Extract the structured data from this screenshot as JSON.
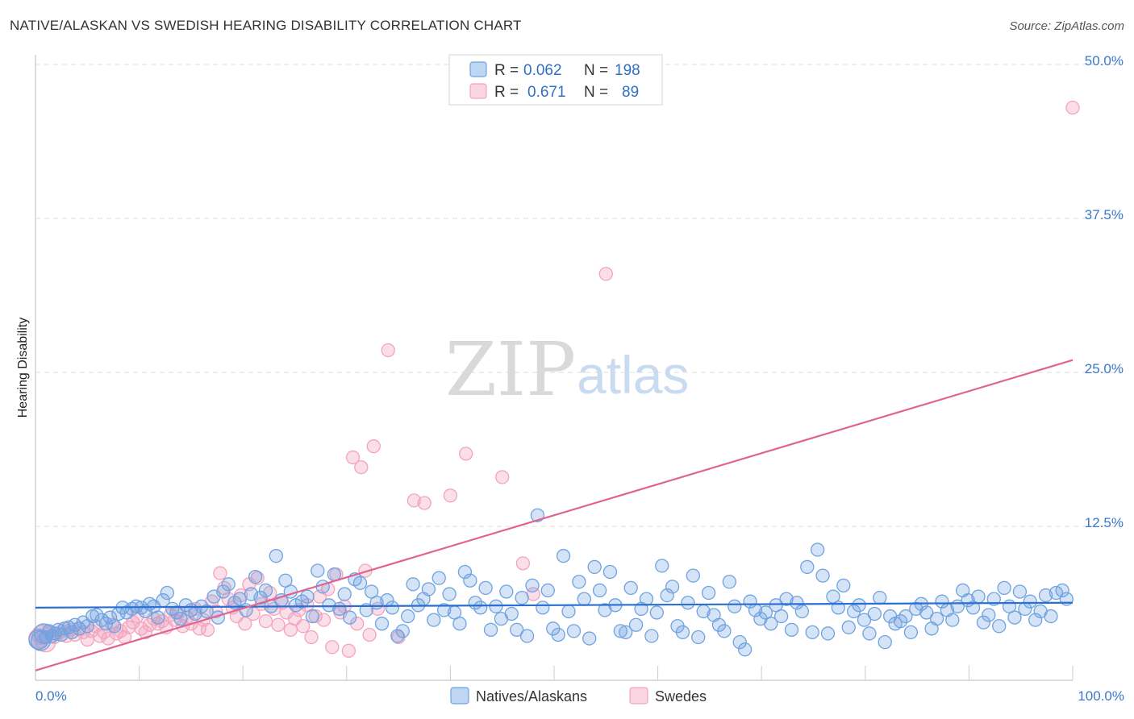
{
  "chart_data": {
    "type": "scatter",
    "title": "NATIVE/ALASKAN VS SWEDISH HEARING DISABILITY CORRELATION CHART",
    "source": "Source: ZipAtlas.com",
    "ylabel": "Hearing Disability",
    "xlabel": "",
    "x_ticks": [
      "0.0%",
      "100.0%"
    ],
    "y_ticks": [
      {
        "value": 12.5,
        "label": "12.5%"
      },
      {
        "value": 25.0,
        "label": "25.0%"
      },
      {
        "value": 37.5,
        "label": "37.5%"
      },
      {
        "value": 50.0,
        "label": "50.0%"
      }
    ],
    "xlim": [
      0,
      100
    ],
    "ylim": [
      0,
      50
    ],
    "watermark": {
      "part1": "ZIP",
      "part2": "atlas"
    },
    "legend": {
      "rows": [
        {
          "r_label": "R =",
          "r_value": "0.062",
          "n_label": "N =",
          "n_value": "198"
        },
        {
          "r_label": "R =",
          "r_value": "0.671",
          "n_label": "N =",
          "n_value": "89"
        }
      ]
    },
    "series": [
      {
        "name": "Natives/Alaskans",
        "color": "#6fa3e0",
        "line_color": "#2a6fd1",
        "trend": {
          "x": [
            0,
            100
          ],
          "y": [
            5.9,
            6.3
          ]
        },
        "points": [
          [
            0.3,
            3.3
          ],
          [
            0.5,
            3.2
          ],
          [
            0.8,
            3.8
          ],
          [
            1.0,
            3.5
          ],
          [
            1.3,
            4.0
          ],
          [
            1.6,
            3.6
          ],
          [
            1.9,
            3.8
          ],
          [
            2.2,
            4.1
          ],
          [
            2.5,
            3.7
          ],
          [
            2.8,
            4.2
          ],
          [
            3.2,
            4.3
          ],
          [
            3.5,
            3.9
          ],
          [
            3.8,
            4.5
          ],
          [
            4.2,
            4.2
          ],
          [
            4.6,
            4.7
          ],
          [
            5.0,
            4.4
          ],
          [
            5.5,
            5.2
          ],
          [
            5.9,
            5.3
          ],
          [
            6.4,
            4.9
          ],
          [
            6.8,
            4.6
          ],
          [
            7.2,
            5.1
          ],
          [
            7.6,
            4.4
          ],
          [
            8.0,
            5.4
          ],
          [
            8.4,
            5.9
          ],
          [
            8.8,
            5.5
          ],
          [
            9.3,
            5.8
          ],
          [
            9.7,
            6.0
          ],
          [
            10.2,
            5.9
          ],
          [
            10.6,
            5.6
          ],
          [
            11.0,
            6.2
          ],
          [
            11.4,
            6.0
          ],
          [
            11.8,
            5.1
          ],
          [
            12.3,
            6.5
          ],
          [
            12.7,
            7.1
          ],
          [
            13.2,
            5.8
          ],
          [
            13.6,
            5.5
          ],
          [
            14.0,
            5.0
          ],
          [
            14.5,
            6.1
          ],
          [
            15.0,
            5.7
          ],
          [
            15.4,
            5.4
          ],
          [
            16.0,
            6.0
          ],
          [
            16.5,
            5.6
          ],
          [
            17.2,
            6.8
          ],
          [
            17.6,
            5.1
          ],
          [
            18.1,
            7.2
          ],
          [
            18.6,
            7.8
          ],
          [
            19.2,
            6.3
          ],
          [
            19.7,
            6.6
          ],
          [
            20.3,
            5.7
          ],
          [
            20.8,
            7.0
          ],
          [
            21.2,
            8.4
          ],
          [
            21.7,
            6.7
          ],
          [
            22.2,
            7.3
          ],
          [
            22.7,
            6.0
          ],
          [
            23.2,
            10.1
          ],
          [
            23.7,
            6.5
          ],
          [
            24.1,
            8.1
          ],
          [
            24.6,
            7.2
          ],
          [
            25.1,
            6.1
          ],
          [
            25.7,
            6.4
          ],
          [
            26.2,
            6.8
          ],
          [
            26.7,
            5.2
          ],
          [
            27.2,
            8.9
          ],
          [
            27.7,
            7.6
          ],
          [
            28.3,
            6.1
          ],
          [
            28.8,
            8.6
          ],
          [
            29.3,
            5.8
          ],
          [
            29.8,
            7.0
          ],
          [
            30.3,
            5.1
          ],
          [
            30.8,
            8.2
          ],
          [
            31.3,
            7.9
          ],
          [
            31.9,
            5.7
          ],
          [
            32.4,
            7.2
          ],
          [
            32.9,
            6.3
          ],
          [
            33.4,
            4.6
          ],
          [
            33.9,
            6.5
          ],
          [
            34.4,
            5.9
          ],
          [
            34.9,
            3.6
          ],
          [
            35.4,
            4.0
          ],
          [
            35.9,
            5.2
          ],
          [
            36.4,
            7.8
          ],
          [
            36.9,
            6.1
          ],
          [
            37.4,
            6.6
          ],
          [
            37.9,
            7.4
          ],
          [
            38.4,
            4.9
          ],
          [
            38.9,
            8.3
          ],
          [
            39.4,
            5.7
          ],
          [
            39.9,
            7.0
          ],
          [
            40.4,
            5.5
          ],
          [
            40.9,
            4.6
          ],
          [
            41.4,
            8.8
          ],
          [
            41.9,
            8.1
          ],
          [
            42.4,
            6.3
          ],
          [
            42.9,
            5.9
          ],
          [
            43.4,
            7.5
          ],
          [
            43.9,
            4.1
          ],
          [
            44.4,
            6.0
          ],
          [
            44.9,
            5.0
          ],
          [
            45.4,
            7.2
          ],
          [
            45.9,
            5.4
          ],
          [
            46.4,
            4.1
          ],
          [
            46.9,
            6.7
          ],
          [
            47.4,
            3.6
          ],
          [
            47.9,
            7.7
          ],
          [
            48.4,
            13.4
          ],
          [
            48.9,
            5.9
          ],
          [
            49.4,
            7.3
          ],
          [
            49.9,
            4.2
          ],
          [
            50.4,
            3.7
          ],
          [
            50.9,
            10.1
          ],
          [
            51.4,
            5.6
          ],
          [
            51.9,
            4.0
          ],
          [
            52.4,
            8.0
          ],
          [
            52.9,
            6.6
          ],
          [
            53.4,
            3.4
          ],
          [
            53.9,
            9.2
          ],
          [
            54.4,
            7.3
          ],
          [
            54.9,
            5.7
          ],
          [
            55.4,
            8.8
          ],
          [
            55.9,
            6.1
          ],
          [
            56.4,
            4.0
          ],
          [
            56.9,
            3.9
          ],
          [
            57.4,
            7.5
          ],
          [
            57.9,
            4.5
          ],
          [
            58.4,
            5.8
          ],
          [
            58.9,
            6.6
          ],
          [
            59.4,
            3.6
          ],
          [
            59.9,
            5.5
          ],
          [
            60.4,
            9.3
          ],
          [
            60.9,
            6.9
          ],
          [
            61.4,
            7.6
          ],
          [
            61.9,
            4.4
          ],
          [
            62.4,
            3.9
          ],
          [
            62.9,
            6.3
          ],
          [
            63.4,
            8.5
          ],
          [
            63.9,
            3.5
          ],
          [
            64.4,
            5.6
          ],
          [
            64.9,
            7.1
          ],
          [
            65.4,
            5.3
          ],
          [
            65.9,
            4.5
          ],
          [
            66.4,
            4.0
          ],
          [
            66.9,
            8.0
          ],
          [
            67.4,
            6.0
          ],
          [
            67.9,
            3.1
          ],
          [
            68.4,
            2.5
          ],
          [
            68.9,
            6.4
          ],
          [
            69.4,
            5.7
          ],
          [
            69.9,
            5.0
          ],
          [
            70.4,
            5.5
          ],
          [
            70.9,
            4.6
          ],
          [
            71.4,
            6.1
          ],
          [
            71.9,
            5.2
          ],
          [
            72.4,
            6.6
          ],
          [
            72.9,
            4.1
          ],
          [
            73.4,
            6.3
          ],
          [
            73.9,
            5.6
          ],
          [
            74.4,
            9.2
          ],
          [
            74.9,
            3.9
          ],
          [
            75.4,
            10.6
          ],
          [
            75.9,
            8.5
          ],
          [
            76.4,
            3.8
          ],
          [
            76.9,
            6.8
          ],
          [
            77.4,
            5.9
          ],
          [
            77.9,
            7.7
          ],
          [
            78.4,
            4.3
          ],
          [
            78.9,
            5.6
          ],
          [
            79.4,
            6.1
          ],
          [
            79.9,
            4.9
          ],
          [
            80.4,
            3.8
          ],
          [
            80.9,
            5.4
          ],
          [
            81.4,
            6.7
          ],
          [
            81.9,
            3.1
          ],
          [
            82.4,
            5.2
          ],
          [
            82.9,
            4.6
          ],
          [
            83.4,
            4.8
          ],
          [
            83.9,
            5.2
          ],
          [
            84.4,
            3.9
          ],
          [
            84.9,
            5.8
          ],
          [
            85.4,
            6.2
          ],
          [
            85.9,
            5.5
          ],
          [
            86.4,
            4.2
          ],
          [
            86.9,
            5.0
          ],
          [
            87.4,
            6.4
          ],
          [
            87.9,
            5.7
          ],
          [
            88.4,
            4.9
          ],
          [
            88.9,
            6.0
          ],
          [
            89.4,
            7.3
          ],
          [
            89.9,
            6.5
          ],
          [
            90.4,
            5.9
          ],
          [
            90.9,
            6.8
          ],
          [
            91.4,
            4.7
          ],
          [
            91.9,
            5.3
          ],
          [
            92.4,
            6.6
          ],
          [
            92.9,
            4.4
          ],
          [
            93.4,
            7.5
          ],
          [
            93.9,
            6.0
          ],
          [
            94.4,
            5.1
          ],
          [
            94.9,
            7.2
          ],
          [
            95.4,
            5.8
          ],
          [
            95.9,
            6.4
          ],
          [
            96.4,
            4.9
          ],
          [
            96.9,
            5.6
          ],
          [
            97.4,
            6.9
          ],
          [
            97.9,
            5.2
          ],
          [
            98.4,
            7.1
          ],
          [
            99.0,
            7.3
          ],
          [
            99.4,
            6.6
          ]
        ]
      },
      {
        "name": "Swedes",
        "color": "#f4a3bd",
        "line_color": "#e0648e",
        "trend": {
          "x": [
            0,
            100
          ],
          "y": [
            0.8,
            26.0
          ]
        },
        "points": [
          [
            0.3,
            3.4
          ],
          [
            0.6,
            3.7
          ],
          [
            1.0,
            3.1
          ],
          [
            1.4,
            3.9
          ],
          [
            1.8,
            3.5
          ],
          [
            2.2,
            3.8
          ],
          [
            2.6,
            4.0
          ],
          [
            3.0,
            3.6
          ],
          [
            3.4,
            4.1
          ],
          [
            3.8,
            3.7
          ],
          [
            4.2,
            4.2
          ],
          [
            4.6,
            3.9
          ],
          [
            5.0,
            3.3
          ],
          [
            5.4,
            4.0
          ],
          [
            5.8,
            4.4
          ],
          [
            6.2,
            3.6
          ],
          [
            6.6,
            3.9
          ],
          [
            7.0,
            3.4
          ],
          [
            7.4,
            4.5
          ],
          [
            7.8,
            3.8
          ],
          [
            8.2,
            4.0
          ],
          [
            8.6,
            3.5
          ],
          [
            9.0,
            4.3
          ],
          [
            9.4,
            4.7
          ],
          [
            9.8,
            5.2
          ],
          [
            10.2,
            4.2
          ],
          [
            10.6,
            3.9
          ],
          [
            11.0,
            4.5
          ],
          [
            11.4,
            5.0
          ],
          [
            11.8,
            4.6
          ],
          [
            12.2,
            4.8
          ],
          [
            12.6,
            4.3
          ],
          [
            13.0,
            5.3
          ],
          [
            13.4,
            4.9
          ],
          [
            13.8,
            5.5
          ],
          [
            14.2,
            4.4
          ],
          [
            14.6,
            5.1
          ],
          [
            15.0,
            4.6
          ],
          [
            15.4,
            5.8
          ],
          [
            15.8,
            4.2
          ],
          [
            16.2,
            4.9
          ],
          [
            16.6,
            4.1
          ],
          [
            17.0,
            6.4
          ],
          [
            17.4,
            5.6
          ],
          [
            17.8,
            8.7
          ],
          [
            18.2,
            7.5
          ],
          [
            18.6,
            6.6
          ],
          [
            19.0,
            5.9
          ],
          [
            19.4,
            5.2
          ],
          [
            19.8,
            6.9
          ],
          [
            20.2,
            4.6
          ],
          [
            20.6,
            7.8
          ],
          [
            21.0,
            5.4
          ],
          [
            21.4,
            8.3
          ],
          [
            21.8,
            6.2
          ],
          [
            22.2,
            4.8
          ],
          [
            22.6,
            7.1
          ],
          [
            23.0,
            5.8
          ],
          [
            23.4,
            4.5
          ],
          [
            23.8,
            6.3
          ],
          [
            24.2,
            5.5
          ],
          [
            24.6,
            4.1
          ],
          [
            25.0,
            5.0
          ],
          [
            25.4,
            5.7
          ],
          [
            25.8,
            4.4
          ],
          [
            26.2,
            6.1
          ],
          [
            26.6,
            3.5
          ],
          [
            27.0,
            5.2
          ],
          [
            27.4,
            6.8
          ],
          [
            27.8,
            4.9
          ],
          [
            28.2,
            7.4
          ],
          [
            28.6,
            2.7
          ],
          [
            29.0,
            8.6
          ],
          [
            29.4,
            5.5
          ],
          [
            29.8,
            6.0
          ],
          [
            30.2,
            2.4
          ],
          [
            30.6,
            18.1
          ],
          [
            31.0,
            4.6
          ],
          [
            31.4,
            17.3
          ],
          [
            31.8,
            8.9
          ],
          [
            32.2,
            3.7
          ],
          [
            32.6,
            19.0
          ],
          [
            33.0,
            5.8
          ],
          [
            34.0,
            26.8
          ],
          [
            35.0,
            3.5
          ],
          [
            36.5,
            14.6
          ],
          [
            37.5,
            14.4
          ],
          [
            40.0,
            15.0
          ],
          [
            41.5,
            18.4
          ],
          [
            45.0,
            16.5
          ],
          [
            47.0,
            9.5
          ],
          [
            48.0,
            7.0
          ],
          [
            55.0,
            33.0
          ],
          [
            100.0,
            46.5
          ]
        ]
      }
    ]
  }
}
